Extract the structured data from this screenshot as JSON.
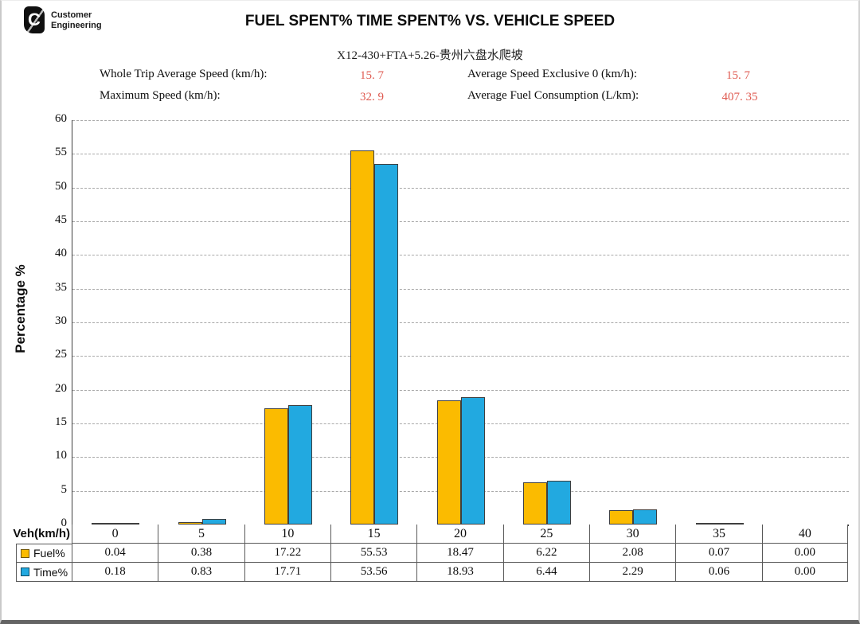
{
  "page": {
    "logo": {
      "mark": "C",
      "line1": "Customer",
      "line2": "Engineering"
    }
  },
  "stats": {
    "whole_trip": {
      "label": "Whole Trip Average Speed (km/h):",
      "value": "15. 7"
    },
    "exclusive_zero": {
      "label": "Average Speed Exclusive 0 (km/h):",
      "value": "15. 7"
    },
    "maximum": {
      "label": "Maximum Speed (km/h):",
      "value": "32. 9"
    },
    "fuel_consumption": {
      "label": "Average Fuel Consumption (L/km):",
      "value": "407. 35"
    }
  },
  "colors": {
    "fuel_bar": "#FBBB00",
    "time_bar": "#22A9E0",
    "stat_value_red": "#DF5A50",
    "axis": "#3F3F3F",
    "gridline": "#A8A8A8",
    "table_border": "#595959"
  },
  "chart_data": {
    "type": "bar",
    "title": "FUEL SPENT% TIME SPENT% VS. VEHICLE SPEED",
    "subtitle": "X12-430+FTA+5.26-贵州六盘水爬坡",
    "categories": [
      0,
      5,
      10,
      15,
      20,
      25,
      30,
      35,
      40
    ],
    "series": [
      {
        "name": "Fuel%",
        "color": "#FBBB00",
        "values": [
          0.04,
          0.38,
          17.22,
          55.53,
          18.47,
          6.22,
          2.08,
          0.07,
          0.0
        ]
      },
      {
        "name": "Time%",
        "color": "#22A9E0",
        "values": [
          0.18,
          0.83,
          17.71,
          53.56,
          18.93,
          6.44,
          2.29,
          0.06,
          0.0
        ]
      }
    ],
    "xlabel": "Veh(km/h)",
    "ylabel": "Percentage %",
    "ylim": [
      0,
      60
    ],
    "ytick_step": 5,
    "grid": "dashed-horizontal",
    "legend_position": "table-rows"
  }
}
